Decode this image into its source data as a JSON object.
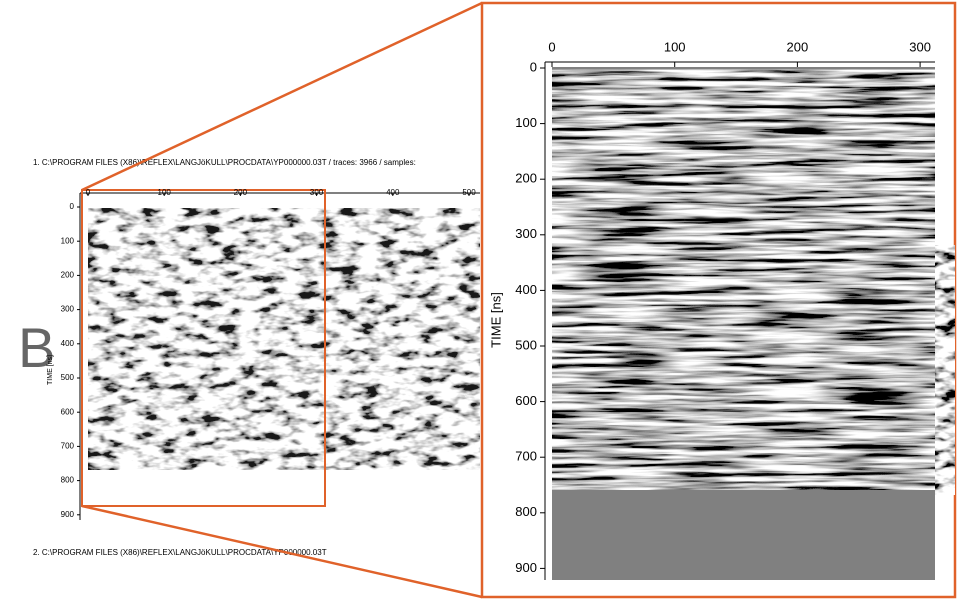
{
  "panel_label": "B",
  "profile_1_caption": "1. C:\\PROGRAM FILES (X86)\\REFLEX\\LANGJöKULL\\PROCDATA\\YP000000.03T / traces: 3966 / samples:",
  "profile_2_caption": "2. C:\\PROGRAM FILES (X86)\\REFLEX\\LANGJöKULL\\PROCDATA\\YP000000.03T",
  "overview": {
    "y_axis_label": "TIME [ns]",
    "xticks": [
      0,
      100,
      200,
      300,
      400,
      500
    ],
    "yticks": [
      0,
      100,
      200,
      300,
      400,
      500,
      600,
      700,
      800,
      900
    ]
  },
  "zoom": {
    "y_axis_label": "TIME [ns]",
    "xticks": [
      0,
      100,
      200,
      300
    ],
    "yticks": [
      0,
      100,
      200,
      300,
      400,
      500,
      600,
      700,
      800,
      900
    ]
  }
}
